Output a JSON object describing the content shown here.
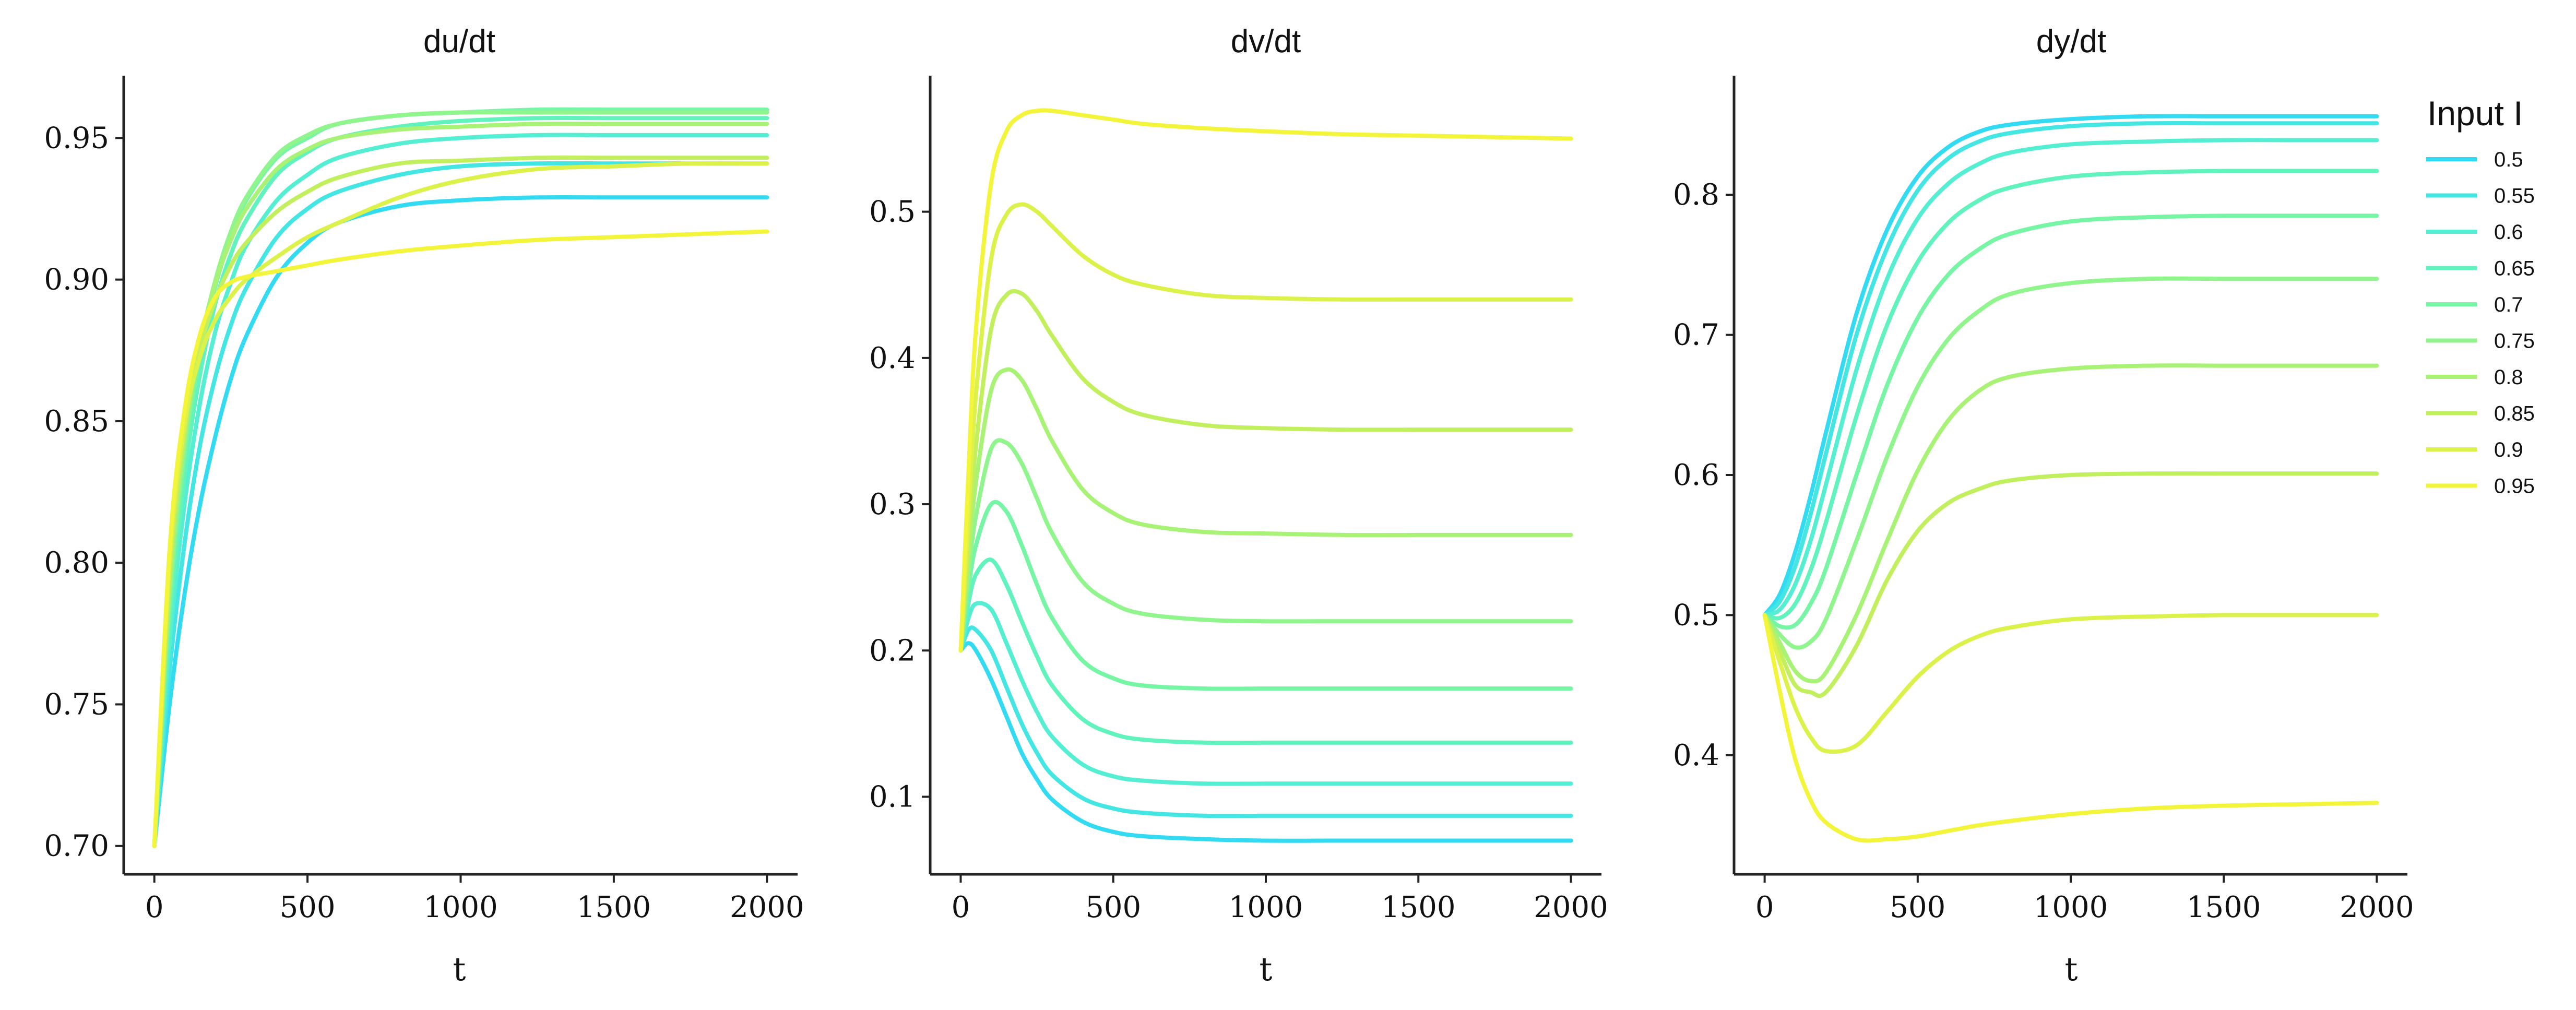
{
  "colors": [
    "#33dbf2",
    "#44e6e4",
    "#54efd3",
    "#61f3be",
    "#76f5a5",
    "#8ff58c",
    "#a8f275",
    "#c2ef5d",
    "#dcf24a",
    "#f3f53a"
  ],
  "legend": {
    "title": "Input I",
    "placement": "right"
  },
  "chart_data": [
    {
      "type": "line",
      "title": "du/dt",
      "xlabel": "t",
      "ylabel": "",
      "xlim": [
        -100,
        2100
      ],
      "ylim": [
        0.69,
        0.972
      ],
      "xticks": [
        0,
        500,
        1000,
        1500,
        2000
      ],
      "xtick_labels": [
        "0",
        "500",
        "1000",
        "1500",
        "2000"
      ],
      "yticks": [
        0.7,
        0.75,
        0.8,
        0.85,
        0.9,
        0.95
      ],
      "ytick_labels": [
        "0.70",
        "0.75",
        "0.80",
        "0.85",
        "0.90",
        "0.95"
      ],
      "x": [
        0,
        50,
        100,
        150,
        200,
        250,
        300,
        400,
        500,
        600,
        800,
        1000,
        1250,
        1500,
        1750,
        2000
      ],
      "series": [
        {
          "name": "0.5",
          "values": [
            0.7,
            0.75,
            0.79,
            0.821,
            0.845,
            0.865,
            0.88,
            0.901,
            0.913,
            0.92,
            0.926,
            0.928,
            0.929,
            0.929,
            0.929,
            0.929
          ]
        },
        {
          "name": "0.55",
          "values": [
            0.7,
            0.762,
            0.808,
            0.842,
            0.866,
            0.884,
            0.897,
            0.915,
            0.925,
            0.931,
            0.937,
            0.94,
            0.941,
            0.941,
            0.941,
            0.941
          ]
        },
        {
          "name": "0.6",
          "values": [
            0.7,
            0.772,
            0.822,
            0.857,
            0.882,
            0.899,
            0.912,
            0.928,
            0.937,
            0.943,
            0.948,
            0.95,
            0.951,
            0.951,
            0.951,
            0.951
          ]
        },
        {
          "name": "0.65",
          "values": [
            0.7,
            0.779,
            0.832,
            0.867,
            0.892,
            0.909,
            0.921,
            0.937,
            0.945,
            0.95,
            0.954,
            0.956,
            0.957,
            0.957,
            0.957,
            0.957
          ]
        },
        {
          "name": "0.7",
          "values": [
            0.7,
            0.785,
            0.839,
            0.874,
            0.898,
            0.915,
            0.928,
            0.943,
            0.95,
            0.955,
            0.958,
            0.959,
            0.96,
            0.96,
            0.96,
            0.96
          ]
        },
        {
          "name": "0.75",
          "values": [
            0.7,
            0.789,
            0.843,
            0.877,
            0.9,
            0.917,
            0.929,
            0.944,
            0.951,
            0.955,
            0.958,
            0.959,
            0.959,
            0.959,
            0.959,
            0.959
          ]
        },
        {
          "name": "0.8",
          "values": [
            0.7,
            0.793,
            0.846,
            0.878,
            0.899,
            0.914,
            0.925,
            0.939,
            0.946,
            0.95,
            0.953,
            0.954,
            0.955,
            0.955,
            0.955,
            0.955
          ]
        },
        {
          "name": "0.85",
          "values": [
            0.7,
            0.797,
            0.848,
            0.876,
            0.893,
            0.905,
            0.913,
            0.924,
            0.931,
            0.936,
            0.941,
            0.942,
            0.943,
            0.943,
            0.943,
            0.943
          ]
        },
        {
          "name": "0.9",
          "values": [
            0.7,
            0.801,
            0.85,
            0.873,
            0.886,
            0.894,
            0.9,
            0.908,
            0.915,
            0.92,
            0.929,
            0.935,
            0.939,
            0.94,
            0.941,
            0.941
          ]
        },
        {
          "name": "0.95",
          "values": [
            0.7,
            0.805,
            0.855,
            0.881,
            0.894,
            0.899,
            0.901,
            0.903,
            0.905,
            0.907,
            0.91,
            0.912,
            0.914,
            0.915,
            0.916,
            0.917
          ]
        }
      ]
    },
    {
      "type": "line",
      "title": "dv/dt",
      "xlabel": "t",
      "ylabel": "",
      "xlim": [
        -100,
        2100
      ],
      "ylim": [
        0.047,
        0.593
      ],
      "xticks": [
        0,
        500,
        1000,
        1500,
        2000
      ],
      "xtick_labels": [
        "0",
        "500",
        "1000",
        "1500",
        "2000"
      ],
      "yticks": [
        0.1,
        0.2,
        0.3,
        0.4,
        0.5
      ],
      "ytick_labels": [
        "0.1",
        "0.2",
        "0.3",
        "0.4",
        "0.5"
      ],
      "x": [
        0,
        25,
        50,
        100,
        150,
        200,
        250,
        300,
        400,
        500,
        600,
        800,
        1000,
        1250,
        1500,
        1750,
        2000
      ],
      "series": [
        {
          "name": "0.5",
          "values": [
            0.2,
            0.205,
            0.2,
            0.18,
            0.155,
            0.13,
            0.112,
            0.098,
            0.083,
            0.076,
            0.073,
            0.071,
            0.07,
            0.07,
            0.07,
            0.07,
            0.07
          ]
        },
        {
          "name": "0.55",
          "values": [
            0.2,
            0.214,
            0.214,
            0.2,
            0.175,
            0.15,
            0.13,
            0.115,
            0.099,
            0.092,
            0.089,
            0.087,
            0.087,
            0.087,
            0.087,
            0.087,
            0.087
          ]
        },
        {
          "name": "0.6",
          "values": [
            0.2,
            0.222,
            0.232,
            0.228,
            0.205,
            0.18,
            0.158,
            0.141,
            0.122,
            0.114,
            0.111,
            0.109,
            0.109,
            0.109,
            0.109,
            0.109,
            0.109
          ]
        },
        {
          "name": "0.65",
          "values": [
            0.2,
            0.232,
            0.252,
            0.262,
            0.245,
            0.22,
            0.196,
            0.176,
            0.153,
            0.143,
            0.139,
            0.137,
            0.137,
            0.137,
            0.137,
            0.137,
            0.137
          ]
        },
        {
          "name": "0.7",
          "values": [
            0.2,
            0.242,
            0.272,
            0.3,
            0.295,
            0.272,
            0.245,
            0.222,
            0.193,
            0.181,
            0.176,
            0.174,
            0.174,
            0.174,
            0.174,
            0.174,
            0.174
          ]
        },
        {
          "name": "0.75",
          "values": [
            0.2,
            0.252,
            0.292,
            0.338,
            0.342,
            0.328,
            0.304,
            0.28,
            0.247,
            0.232,
            0.225,
            0.221,
            0.22,
            0.22,
            0.22,
            0.22,
            0.22
          ]
        },
        {
          "name": "0.8",
          "values": [
            0.2,
            0.262,
            0.315,
            0.378,
            0.392,
            0.385,
            0.365,
            0.343,
            0.31,
            0.294,
            0.286,
            0.281,
            0.28,
            0.279,
            0.279,
            0.279,
            0.279
          ]
        },
        {
          "name": "0.85",
          "values": [
            0.2,
            0.275,
            0.34,
            0.42,
            0.443,
            0.444,
            0.432,
            0.415,
            0.386,
            0.37,
            0.361,
            0.354,
            0.352,
            0.351,
            0.351,
            0.351,
            0.351
          ]
        },
        {
          "name": "0.9",
          "values": [
            0.2,
            0.292,
            0.375,
            0.468,
            0.498,
            0.505,
            0.5,
            0.49,
            0.47,
            0.457,
            0.45,
            0.443,
            0.441,
            0.44,
            0.44,
            0.44,
            0.44
          ]
        },
        {
          "name": "0.95",
          "values": [
            0.2,
            0.32,
            0.42,
            0.52,
            0.555,
            0.566,
            0.569,
            0.569,
            0.566,
            0.563,
            0.56,
            0.557,
            0.555,
            0.553,
            0.552,
            0.551,
            0.55
          ]
        }
      ]
    },
    {
      "type": "line",
      "title": "dy/dt",
      "xlabel": "t",
      "ylabel": "",
      "xlim": [
        -100,
        2100
      ],
      "ylim": [
        0.315,
        0.885
      ],
      "xticks": [
        0,
        500,
        1000,
        1500,
        2000
      ],
      "xtick_labels": [
        "0",
        "500",
        "1000",
        "1500",
        "2000"
      ],
      "yticks": [
        0.4,
        0.5,
        0.6,
        0.7,
        0.8
      ],
      "ytick_labels": [
        "0.4",
        "0.5",
        "0.6",
        "0.7",
        "0.8"
      ],
      "x": [
        0,
        50,
        100,
        150,
        200,
        300,
        400,
        500,
        600,
        700,
        800,
        1000,
        1250,
        1500,
        1750,
        2000
      ],
      "series": [
        {
          "name": "0.5",
          "values": [
            0.5,
            0.515,
            0.545,
            0.585,
            0.63,
            0.715,
            0.775,
            0.813,
            0.834,
            0.845,
            0.85,
            0.854,
            0.856,
            0.856,
            0.856,
            0.856
          ]
        },
        {
          "name": "0.55",
          "values": [
            0.5,
            0.51,
            0.535,
            0.572,
            0.615,
            0.7,
            0.762,
            0.803,
            0.826,
            0.838,
            0.844,
            0.849,
            0.851,
            0.851,
            0.851,
            0.851
          ]
        },
        {
          "name": "0.6",
          "values": [
            0.5,
            0.504,
            0.522,
            0.553,
            0.593,
            0.675,
            0.74,
            0.783,
            0.808,
            0.822,
            0.83,
            0.836,
            0.838,
            0.839,
            0.839,
            0.839
          ]
        },
        {
          "name": "0.65",
          "values": [
            0.5,
            0.498,
            0.508,
            0.532,
            0.566,
            0.642,
            0.707,
            0.752,
            0.78,
            0.796,
            0.805,
            0.813,
            0.816,
            0.817,
            0.817,
            0.817
          ]
        },
        {
          "name": "0.7",
          "values": [
            0.5,
            0.492,
            0.493,
            0.508,
            0.533,
            0.6,
            0.664,
            0.712,
            0.743,
            0.761,
            0.772,
            0.781,
            0.784,
            0.785,
            0.785,
            0.785
          ]
        },
        {
          "name": "0.75",
          "values": [
            0.5,
            0.486,
            0.477,
            0.481,
            0.497,
            0.553,
            0.613,
            0.663,
            0.697,
            0.717,
            0.729,
            0.737,
            0.74,
            0.74,
            0.74,
            0.74
          ]
        },
        {
          "name": "0.8",
          "values": [
            0.5,
            0.48,
            0.46,
            0.453,
            0.459,
            0.5,
            0.553,
            0.603,
            0.639,
            0.66,
            0.67,
            0.676,
            0.678,
            0.678,
            0.678,
            0.678
          ]
        },
        {
          "name": "0.85",
          "values": [
            0.5,
            0.474,
            0.45,
            0.445,
            0.445,
            0.478,
            0.525,
            0.56,
            0.58,
            0.59,
            0.596,
            0.6,
            0.601,
            0.601,
            0.601,
            0.601
          ]
        },
        {
          "name": "0.9",
          "values": [
            0.5,
            0.466,
            0.434,
            0.413,
            0.403,
            0.407,
            0.431,
            0.456,
            0.474,
            0.485,
            0.491,
            0.497,
            0.499,
            0.5,
            0.5,
            0.5
          ]
        },
        {
          "name": "0.95",
          "values": [
            0.5,
            0.445,
            0.397,
            0.368,
            0.352,
            0.34,
            0.34,
            0.342,
            0.346,
            0.35,
            0.353,
            0.358,
            0.362,
            0.364,
            0.365,
            0.366
          ]
        }
      ]
    }
  ]
}
